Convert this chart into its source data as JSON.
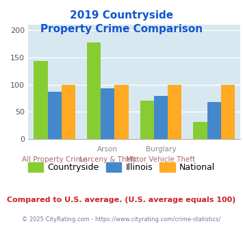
{
  "title_line1": "2019 Countryside",
  "title_line2": "Property Crime Comparison",
  "xlabel_top": [
    "",
    "Arson",
    "Burglary",
    ""
  ],
  "xlabel_bottom": [
    "All Property Crime",
    "Larceny & Theft",
    "Motor Vehicle Theft",
    ""
  ],
  "countryside": [
    144,
    177,
    70,
    31
  ],
  "illinois": [
    87,
    93,
    79,
    68
  ],
  "national": [
    100,
    100,
    100,
    100
  ],
  "countryside_color": "#88cc33",
  "illinois_color": "#4488cc",
  "national_color": "#ffaa22",
  "ylim": [
    0,
    210
  ],
  "yticks": [
    0,
    50,
    100,
    150,
    200
  ],
  "background_color": "#d8e8f0",
  "title_color": "#1155cc",
  "xlabel_top_color": "#888888",
  "xlabel_bottom_color": "#aa6666",
  "grid_color": "#ffffff",
  "legend_labels": [
    "Countryside",
    "Illinois",
    "National"
  ],
  "footnote1": "Compared to U.S. average. (U.S. average equals 100)",
  "footnote2": "© 2025 CityRating.com - https://www.cityrating.com/crime-statistics/",
  "footnote1_color": "#cc2222",
  "footnote2_color": "#7777aa"
}
